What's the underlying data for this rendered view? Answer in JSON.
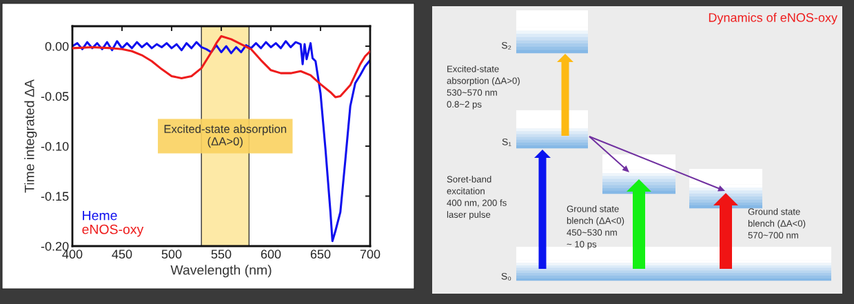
{
  "chart_data": [
    {
      "type": "line",
      "xlabel": "Wavelength (nm)",
      "ylabel": "Time integrated ΔA",
      "xlim": [
        400,
        700
      ],
      "ylim": [
        -0.2,
        0.02
      ],
      "xticks": [
        400,
        450,
        500,
        550,
        600,
        650,
        700
      ],
      "yticks": [
        {
          "value": 0,
          "label": "0.00"
        },
        {
          "value": -0.05,
          "label": "-0.05"
        },
        {
          "value": -0.1,
          "label": "-0.10"
        },
        {
          "value": -0.15,
          "label": "-0.15"
        },
        {
          "value": -0.2,
          "label": "-0.20"
        }
      ],
      "grid": false,
      "legend": "bottom left",
      "marker": "none",
      "line_style": "solid",
      "bands": [
        {
          "axis": "x",
          "from": 530,
          "to": 578,
          "label": "Excited-state absorption\n(ΔA>0)",
          "color": "#fde9a6"
        }
      ],
      "series": [
        {
          "name": "Heme",
          "color": "#1010ee",
          "x": [
            400,
            405,
            410,
            415,
            420,
            425,
            430,
            435,
            440,
            445,
            450,
            455,
            460,
            465,
            470,
            475,
            480,
            485,
            490,
            495,
            500,
            505,
            510,
            515,
            520,
            525,
            530,
            535,
            540,
            545,
            550,
            555,
            560,
            565,
            570,
            575,
            580,
            585,
            590,
            595,
            600,
            605,
            610,
            615,
            620,
            625,
            630,
            632,
            634,
            636,
            640,
            642,
            645,
            650,
            655,
            660,
            662,
            665,
            670,
            675,
            680,
            685,
            690,
            695,
            700
          ],
          "values": [
            0.0,
            0.003,
            -0.003,
            0.004,
            -0.002,
            0.003,
            -0.003,
            0.004,
            -0.004,
            0.005,
            -0.002,
            0.003,
            -0.002,
            0.004,
            -0.001,
            0.003,
            -0.002,
            0.002,
            -0.001,
            0.003,
            -0.002,
            0.002,
            -0.004,
            0.003,
            -0.002,
            0.004,
            -0.001,
            -0.003,
            -0.006,
            0.001,
            -0.006,
            0.0,
            -0.007,
            -0.001,
            -0.006,
            0.001,
            -0.002,
            0.003,
            -0.002,
            0.004,
            -0.001,
            0.003,
            -0.002,
            0.005,
            -0.001,
            0.004,
            0.002,
            -0.018,
            0.002,
            -0.013,
            0.003,
            -0.012,
            -0.015,
            -0.047,
            -0.103,
            -0.166,
            -0.195,
            -0.185,
            -0.166,
            -0.114,
            -0.06,
            -0.037,
            -0.029,
            -0.02,
            -0.014
          ]
        },
        {
          "name": "eNOS-oxy",
          "color": "#ee1c1c",
          "x": [
            400,
            420,
            440,
            450,
            460,
            470,
            480,
            490,
            500,
            510,
            520,
            530,
            540,
            545,
            550,
            560,
            570,
            580,
            590,
            600,
            610,
            620,
            630,
            640,
            650,
            660,
            665,
            670,
            680,
            690,
            695,
            700
          ],
          "values": [
            -0.002,
            -0.001,
            -0.002,
            -0.003,
            -0.005,
            -0.009,
            -0.015,
            -0.023,
            -0.03,
            -0.032,
            -0.03,
            -0.022,
            -0.006,
            0.003,
            0.01,
            0.007,
            0.002,
            -0.003,
            -0.014,
            -0.024,
            -0.027,
            -0.027,
            -0.025,
            -0.029,
            -0.038,
            -0.046,
            -0.051,
            -0.05,
            -0.039,
            -0.018,
            -0.01,
            -0.005
          ]
        }
      ]
    },
    {
      "type": "other",
      "title": "Dynamics of eNOS-oxy",
      "annotations": [
        "S₂",
        "S₁",
        "S₀",
        "Excited-state\nabsorption (ΔA>0)\n530~570 nm\n0.8~2 ps",
        "Soret-band\nexcitation\n400 nm, 200 fs\nlaser pulse",
        "Ground state\nblench (ΔA<0)\n450~530 nm\n~ 10 ps",
        "Ground state\nblench (ΔA<0)\n570~700 nm"
      ]
    }
  ]
}
